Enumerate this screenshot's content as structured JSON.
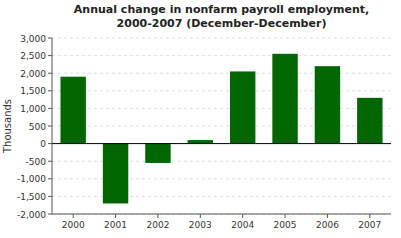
{
  "chart_data": {
    "type": "bar",
    "title": "Annual change in nonfarm payroll employment,",
    "subtitle": "2000-2007 (December-December)",
    "y_label": "Thousands",
    "categories": [
      "2000",
      "2001",
      "2002",
      "2003",
      "2004",
      "2005",
      "2006",
      "2007"
    ],
    "values": [
      1900,
      -1700,
      -550,
      100,
      2050,
      2550,
      2200,
      1300
    ],
    "color": "#006600",
    "ylim": [
      -2000,
      3000
    ],
    "yticks": [
      {
        "value": -2000,
        "label": "-2,000"
      },
      {
        "value": -1500,
        "label": "-1,500"
      },
      {
        "value": -1000,
        "label": "-1,000"
      },
      -500,
      0,
      500,
      {
        "value": 1000,
        "label": "1,000"
      },
      {
        "value": 1500,
        "label": "1,500"
      },
      {
        "value": 2000,
        "label": "2,000"
      },
      {
        "value": 2500,
        "label": "2,500"
      },
      {
        "value": 3000,
        "label": "3,000"
      }
    ],
    "grid": true
  }
}
